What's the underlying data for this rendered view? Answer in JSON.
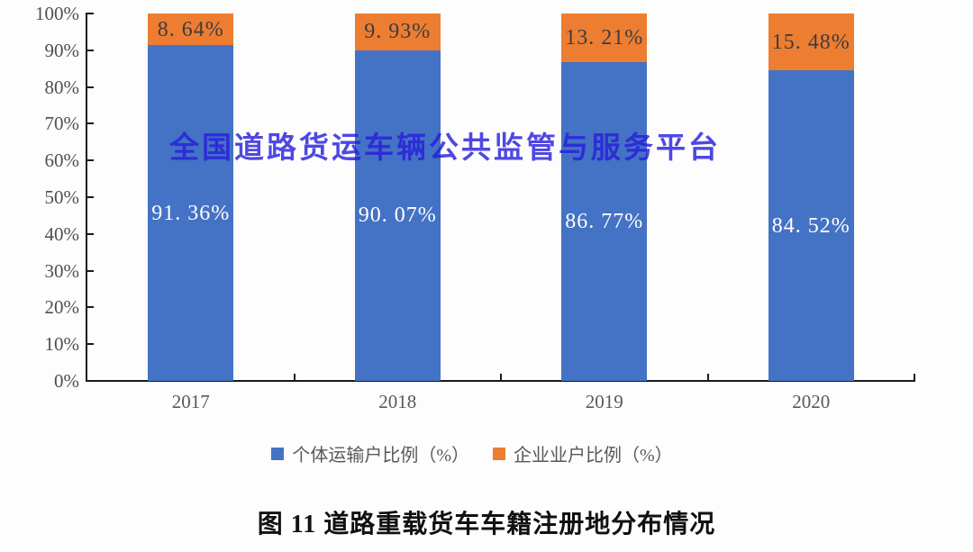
{
  "watermark": {
    "text": "全国道路货运车辆公共监管与服务平台",
    "color": "#281EDD"
  },
  "caption": "图 11 道路重载货车车籍注册地分布情况",
  "chart_data": {
    "type": "bar",
    "stacked": true,
    "title": "图 11 道路重载货车车籍注册地分布情况",
    "categories": [
      "2017",
      "2018",
      "2019",
      "2020"
    ],
    "series": [
      {
        "name": "个体运输户比例（%）",
        "color": "#4472C4",
        "label_color": "#FFFFFF",
        "values": [
          91.36,
          90.07,
          86.77,
          84.52
        ],
        "value_labels": [
          "91. 36%",
          "90. 07%",
          "86. 77%",
          "84. 52%"
        ]
      },
      {
        "name": "企业业户比例（%）",
        "color": "#ED7D31",
        "label_color": "#3D3D3D",
        "values": [
          8.64,
          9.93,
          13.21,
          15.48
        ],
        "value_labels": [
          "8. 64%",
          "9. 93%",
          "13. 21%",
          "15. 48%"
        ]
      }
    ],
    "xlabel": "",
    "ylabel": "",
    "ylim": [
      0,
      100
    ],
    "ytick_labels": [
      "0%",
      "10%",
      "20%",
      "30%",
      "40%",
      "50%",
      "60%",
      "70%",
      "80%",
      "90%",
      "100%"
    ],
    "grid": false,
    "legend_position": "bottom",
    "axis_color": "#1a1a1a",
    "tick_label_color": "#595959"
  }
}
